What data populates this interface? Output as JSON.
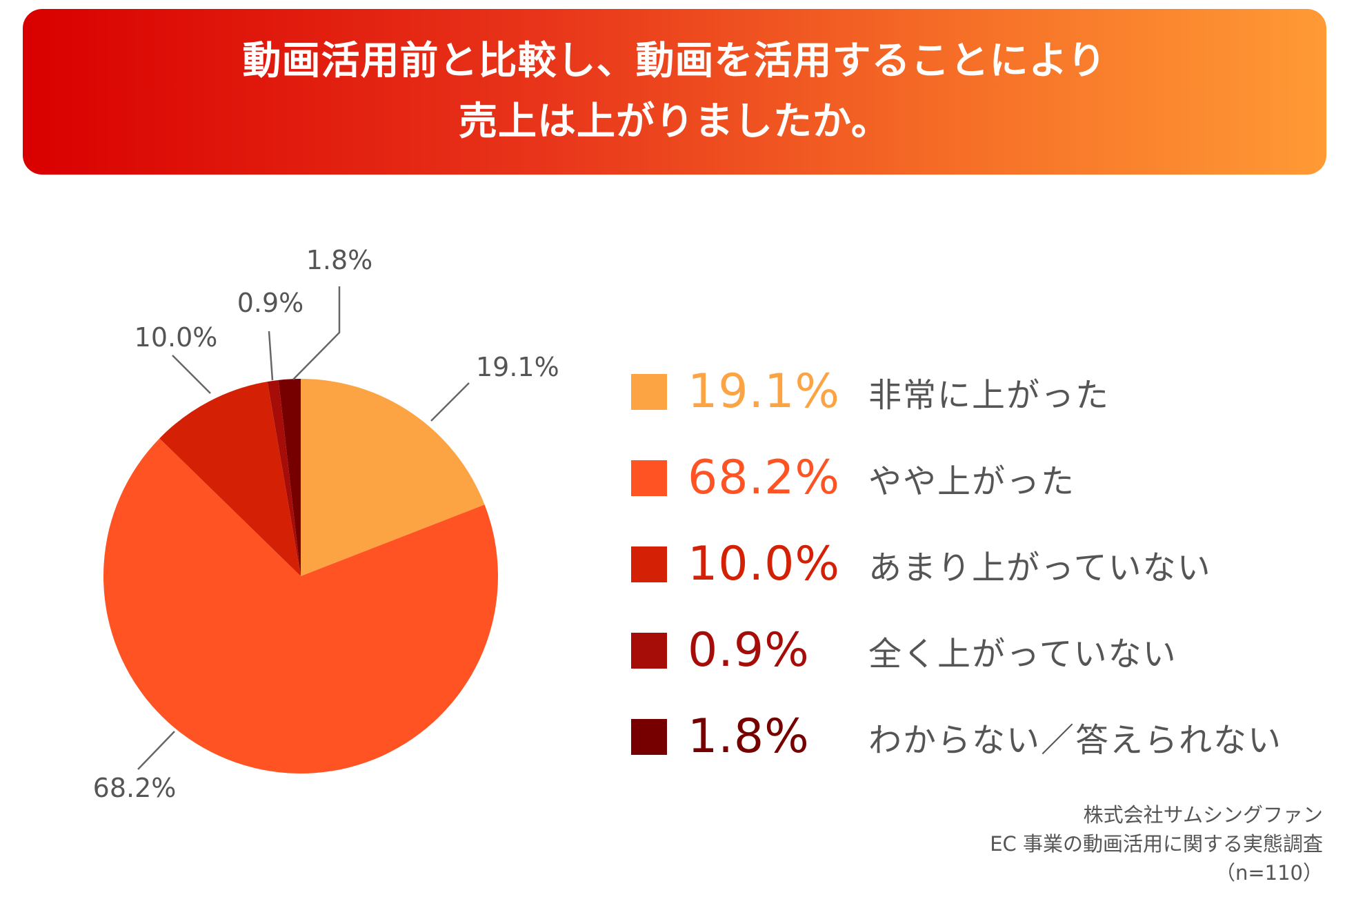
{
  "header": {
    "title_line1": "動画活用前と比較し、動画を活用することにより",
    "title_line2": "売上は上がりましたか。"
  },
  "chart_data": {
    "type": "pie",
    "title": "動画活用前と比較し、動画を活用することにより売上は上がりましたか。",
    "start": "12 o'clock, clockwise",
    "categories": [
      "非常に上がった",
      "やや上がった",
      "あまり上がっていない",
      "全く上がっていない",
      "わからない／答えられない"
    ],
    "values": [
      19.1,
      68.2,
      10.0,
      0.9,
      1.8
    ],
    "value_labels": [
      "19.1%",
      "68.2%",
      "10.0%",
      "0.9%",
      "1.8%"
    ],
    "colors": [
      "#fca343",
      "#ff5324",
      "#d42004",
      "#a60d08",
      "#760000"
    ],
    "legend_placement": "right"
  },
  "source": {
    "line1": "株式会社サムシングファン",
    "line2": "EC 事業の動画活用に関する実態調査",
    "line3": "（n=110）"
  }
}
